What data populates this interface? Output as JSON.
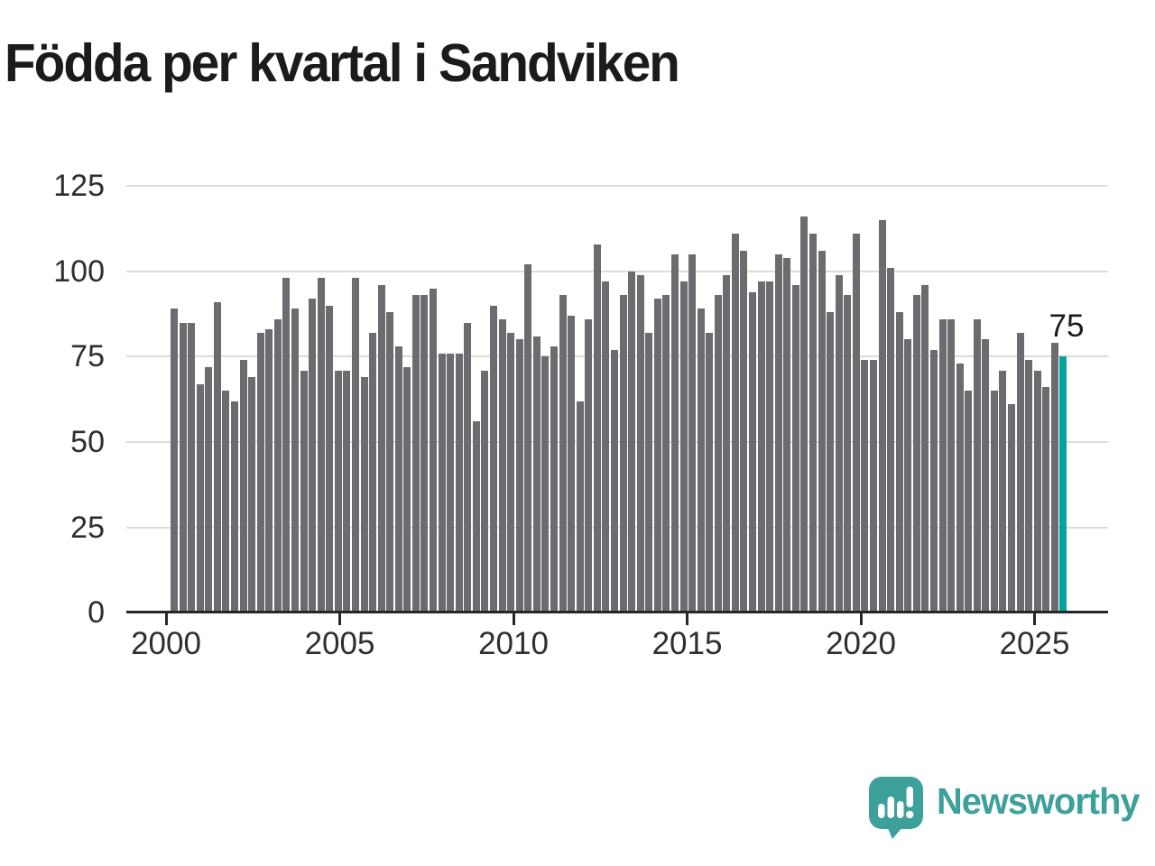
{
  "title": "Födda per kvartal i Sandviken",
  "annotation": {
    "label": "75"
  },
  "logo": {
    "text": "Newsworthy"
  },
  "colors": {
    "bar": "#6b6b70",
    "accent": "#00a69c",
    "grid": "#dcdcdc",
    "axis": "#27272a",
    "tick_text": "#2e2e2e",
    "title_text": "#1b1b1b",
    "logo_teal": "#3da09a",
    "background": "#ffffff"
  },
  "chart_data": {
    "type": "bar",
    "title": "Födda per kvartal i Sandviken",
    "unit": "quarter",
    "x_start": {
      "year": 2000,
      "quarter": 1
    },
    "x_end": {
      "year": 2025,
      "quarter": 4
    },
    "values": [
      89,
      85,
      85,
      67,
      72,
      91,
      65,
      62,
      74,
      69,
      82,
      83,
      86,
      98,
      89,
      71,
      92,
      98,
      90,
      71,
      71,
      98,
      69,
      82,
      96,
      88,
      78,
      72,
      93,
      93,
      95,
      76,
      76,
      76,
      85,
      56,
      71,
      90,
      86,
      82,
      80,
      102,
      81,
      75,
      78,
      93,
      87,
      62,
      86,
      108,
      97,
      77,
      93,
      100,
      99,
      82,
      92,
      93,
      105,
      97,
      105,
      89,
      82,
      93,
      99,
      111,
      106,
      94,
      97,
      97,
      105,
      104,
      96,
      116,
      111,
      106,
      88,
      99,
      93,
      111,
      74,
      74,
      115,
      101,
      88,
      80,
      93,
      96,
      77,
      86,
      86,
      73,
      65,
      86,
      80,
      65,
      71,
      61,
      82,
      74,
      71,
      66,
      79,
      75
    ],
    "highlight_last_bar": true,
    "last_bar_label": "75",
    "x_tick_labels": [
      "2000",
      "2005",
      "2010",
      "2015",
      "2020",
      "2025"
    ],
    "y_ticks": [
      0,
      25,
      50,
      75,
      100,
      125
    ],
    "ylim": [
      0,
      132
    ],
    "grid": true,
    "legend": false
  }
}
